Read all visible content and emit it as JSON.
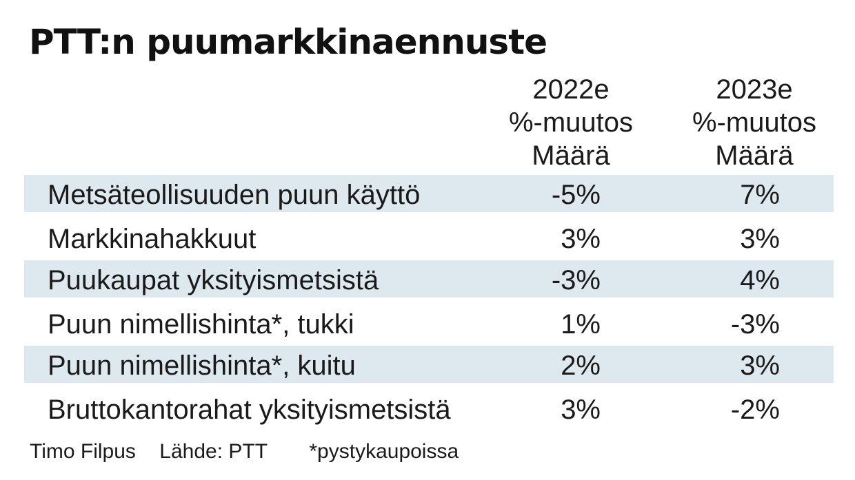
{
  "chart_data": {
    "type": "table",
    "title": "PTT:n puumarkkinaennuste",
    "columns": [
      {
        "lines": [
          "2022e",
          "%-muutos",
          "Määrä"
        ]
      },
      {
        "lines": [
          "2023e",
          "%-muutos",
          "Määrä"
        ]
      }
    ],
    "rows": [
      {
        "label": "Metsäteollisuuden puun käyttö",
        "values": [
          "-5%",
          "7%"
        ]
      },
      {
        "label": "Markkinahakkuut",
        "values": [
          "3%",
          "3%"
        ]
      },
      {
        "label": "Puukaupat yksityismetsistä",
        "values": [
          "-3%",
          "4%"
        ]
      },
      {
        "label": "Puun nimellishinta*, tukki",
        "values": [
          "1%",
          "-3%"
        ]
      },
      {
        "label": "Puun nimellishinta*, kuitu",
        "values": [
          "2%",
          "3%"
        ]
      },
      {
        "label": "Bruttokantorahat yksityismetsistä",
        "values": [
          "3%",
          "-2%"
        ]
      }
    ],
    "row_shading_color": "#dde9ee"
  },
  "footer": {
    "author": "Timo Filpus",
    "source": "Lähde: PTT",
    "note": "*pystykaupoissa"
  }
}
